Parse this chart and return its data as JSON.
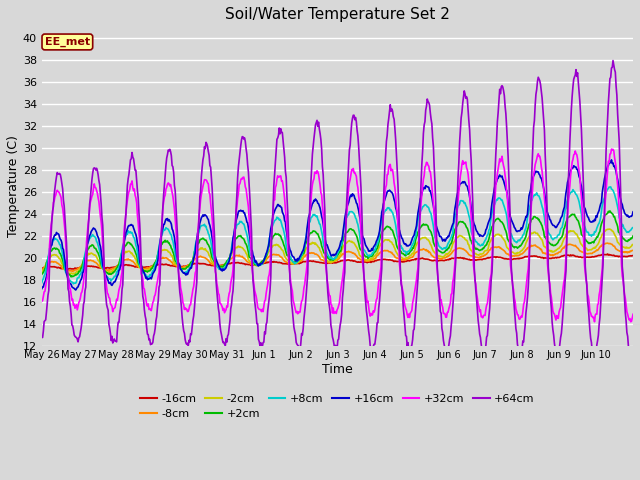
{
  "title": "Soil/Water Temperature Set 2",
  "xlabel": "Time",
  "ylabel": "Temperature (C)",
  "ylim": [
    12,
    41
  ],
  "yticks": [
    12,
    14,
    16,
    18,
    20,
    22,
    24,
    26,
    28,
    30,
    32,
    34,
    36,
    38,
    40
  ],
  "annotation": "EE_met",
  "bg_color": "#d8d8d8",
  "series_order": [
    "-16cm",
    "-8cm",
    "-2cm",
    "+2cm",
    "+8cm",
    "+16cm",
    "+32cm",
    "+64cm"
  ],
  "series": {
    "-16cm": {
      "color": "#cc0000",
      "lw": 1.2
    },
    "-8cm": {
      "color": "#ff8800",
      "lw": 1.2
    },
    "-2cm": {
      "color": "#cccc00",
      "lw": 1.2
    },
    "+2cm": {
      "color": "#00bb00",
      "lw": 1.2
    },
    "+8cm": {
      "color": "#00cccc",
      "lw": 1.2
    },
    "+16cm": {
      "color": "#0000cc",
      "lw": 1.2
    },
    "+32cm": {
      "color": "#ff00ff",
      "lw": 1.2
    },
    "+64cm": {
      "color": "#9900cc",
      "lw": 1.2
    }
  },
  "xtick_labels": [
    "May 26",
    "May 27",
    "May 28",
    "May 29",
    "May 30",
    "May 31",
    "Jun 1",
    "Jun 2",
    "Jun 3",
    "Jun 4",
    "Jun 5",
    "Jun 6",
    "Jun 7",
    "Jun 8",
    "Jun 9",
    "Jun 10"
  ],
  "n_days": 16
}
